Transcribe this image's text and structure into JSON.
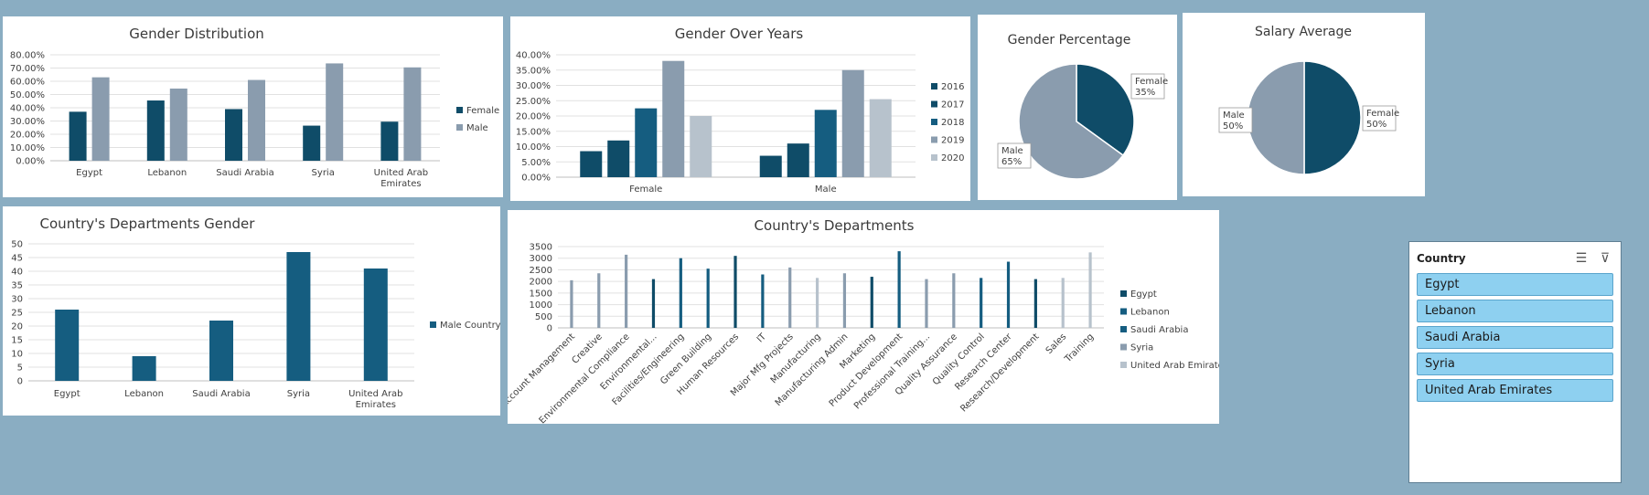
{
  "colors": {
    "dark": "#0f4c68",
    "mid": "#155d80",
    "grey": "#8a9cae",
    "light": "#b7c2cc"
  },
  "chart_data": [
    {
      "id": "gender-distribution",
      "type": "bar",
      "title": "Gender Distribution",
      "categories": [
        "Egypt",
        "Lebanon",
        "Saudi Arabia",
        "Syria",
        "United Arab Emirates"
      ],
      "series": [
        {
          "name": "Female",
          "values": [
            0.37,
            0.455,
            0.39,
            0.265,
            0.295
          ]
        },
        {
          "name": "Male",
          "values": [
            0.63,
            0.545,
            0.61,
            0.735,
            0.705
          ]
        }
      ],
      "yticks": [
        "0.00%",
        "10.00%",
        "20.00%",
        "30.00%",
        "40.00%",
        "50.00%",
        "60.00%",
        "70.00%",
        "80.00%"
      ],
      "ylim": [
        0,
        0.8
      ],
      "grid": true,
      "legend": "right"
    },
    {
      "id": "gender-over-years",
      "type": "bar",
      "title": "Gender Over Years",
      "categories": [
        "Female",
        "Male"
      ],
      "series": [
        {
          "name": "2016",
          "values": [
            0.085,
            0.07
          ]
        },
        {
          "name": "2017",
          "values": [
            0.12,
            0.11
          ]
        },
        {
          "name": "2018",
          "values": [
            0.225,
            0.22
          ]
        },
        {
          "name": "2019",
          "values": [
            0.38,
            0.35
          ]
        },
        {
          "name": "2020",
          "values": [
            0.2,
            0.255
          ]
        }
      ],
      "yticks": [
        "0.00%",
        "5.00%",
        "10.00%",
        "15.00%",
        "20.00%",
        "25.00%",
        "30.00%",
        "35.00%",
        "40.00%"
      ],
      "ylim": [
        0,
        0.4
      ],
      "grid": true,
      "legend": "right"
    },
    {
      "id": "gender-percentage",
      "type": "pie",
      "title": "Gender Percentage",
      "slices": [
        {
          "name": "Female",
          "value": 35,
          "label": "35%"
        },
        {
          "name": "Male",
          "value": 65,
          "label": "65%"
        }
      ]
    },
    {
      "id": "salary-average",
      "type": "pie",
      "title": "Salary Average",
      "slices": [
        {
          "name": "Female",
          "value": 50,
          "label": "50%"
        },
        {
          "name": "Male",
          "value": 50,
          "label": "50%"
        }
      ]
    },
    {
      "id": "country-departments-gender",
      "type": "bar",
      "title": "Country's Departments Gender",
      "categories": [
        "Egypt",
        "Lebanon",
        "Saudi Arabia",
        "Syria",
        "United Arab Emirates"
      ],
      "series": [
        {
          "name": "Male Country",
          "values": [
            26,
            9,
            22,
            47,
            41
          ]
        }
      ],
      "yticks": [
        "0",
        "5",
        "10",
        "15",
        "20",
        "25",
        "30",
        "35",
        "40",
        "45",
        "50"
      ],
      "ylim": [
        0,
        50
      ],
      "grid": true,
      "legend": "right"
    },
    {
      "id": "country-departments",
      "type": "bar",
      "title": "Country's Departments",
      "categories": [
        "Account Management",
        "Creative",
        "Environmental Compliance",
        "Environmental...",
        "Facilities/Engineering",
        "Green Building",
        "Human Resources",
        "IT",
        "Major Mfg Projects",
        "Manufacturing",
        "Manufacturing Admin",
        "Marketing",
        "Product Development",
        "Professional Training...",
        "Quality Assurance",
        "Quality Control",
        "Research Center",
        "Research/Development",
        "Sales",
        "Training"
      ],
      "series_names": [
        "Egypt",
        "Lebanon",
        "Saudi Arabia",
        "Syria",
        "United Arab Emirates"
      ],
      "points": [
        {
          "category": 0,
          "series": 3,
          "value": 2050
        },
        {
          "category": 1,
          "series": 3,
          "value": 2350
        },
        {
          "category": 2,
          "series": 3,
          "value": 3150
        },
        {
          "category": 3,
          "series": 0,
          "value": 2100
        },
        {
          "category": 4,
          "series": 1,
          "value": 3000
        },
        {
          "category": 5,
          "series": 2,
          "value": 2550
        },
        {
          "category": 6,
          "series": 0,
          "value": 3100
        },
        {
          "category": 7,
          "series": 2,
          "value": 2300
        },
        {
          "category": 8,
          "series": 3,
          "value": 2600
        },
        {
          "category": 9,
          "series": 4,
          "value": 2150
        },
        {
          "category": 10,
          "series": 3,
          "value": 2350
        },
        {
          "category": 11,
          "series": 0,
          "value": 2200
        },
        {
          "category": 12,
          "series": 1,
          "value": 3300
        },
        {
          "category": 13,
          "series": 3,
          "value": 2100
        },
        {
          "category": 14,
          "series": 3,
          "value": 2350
        },
        {
          "category": 15,
          "series": 2,
          "value": 2150
        },
        {
          "category": 16,
          "series": 1,
          "value": 2850
        },
        {
          "category": 17,
          "series": 0,
          "value": 2100
        },
        {
          "category": 18,
          "series": 4,
          "value": 2150
        },
        {
          "category": 19,
          "series": 4,
          "value": 3250
        }
      ],
      "yticks": [
        "0",
        "500",
        "1000",
        "1500",
        "2000",
        "2500",
        "3000",
        "3500"
      ],
      "ylim": [
        0,
        3500
      ],
      "grid": true,
      "legend": "right"
    }
  ],
  "slicer": {
    "title": "Country",
    "multi_select_icon": "multi-select-icon",
    "clear_filter_icon": "clear-filter-icon",
    "items": [
      "Egypt",
      "Lebanon",
      "Saudi Arabia",
      "Syria",
      "United Arab Emirates"
    ]
  }
}
